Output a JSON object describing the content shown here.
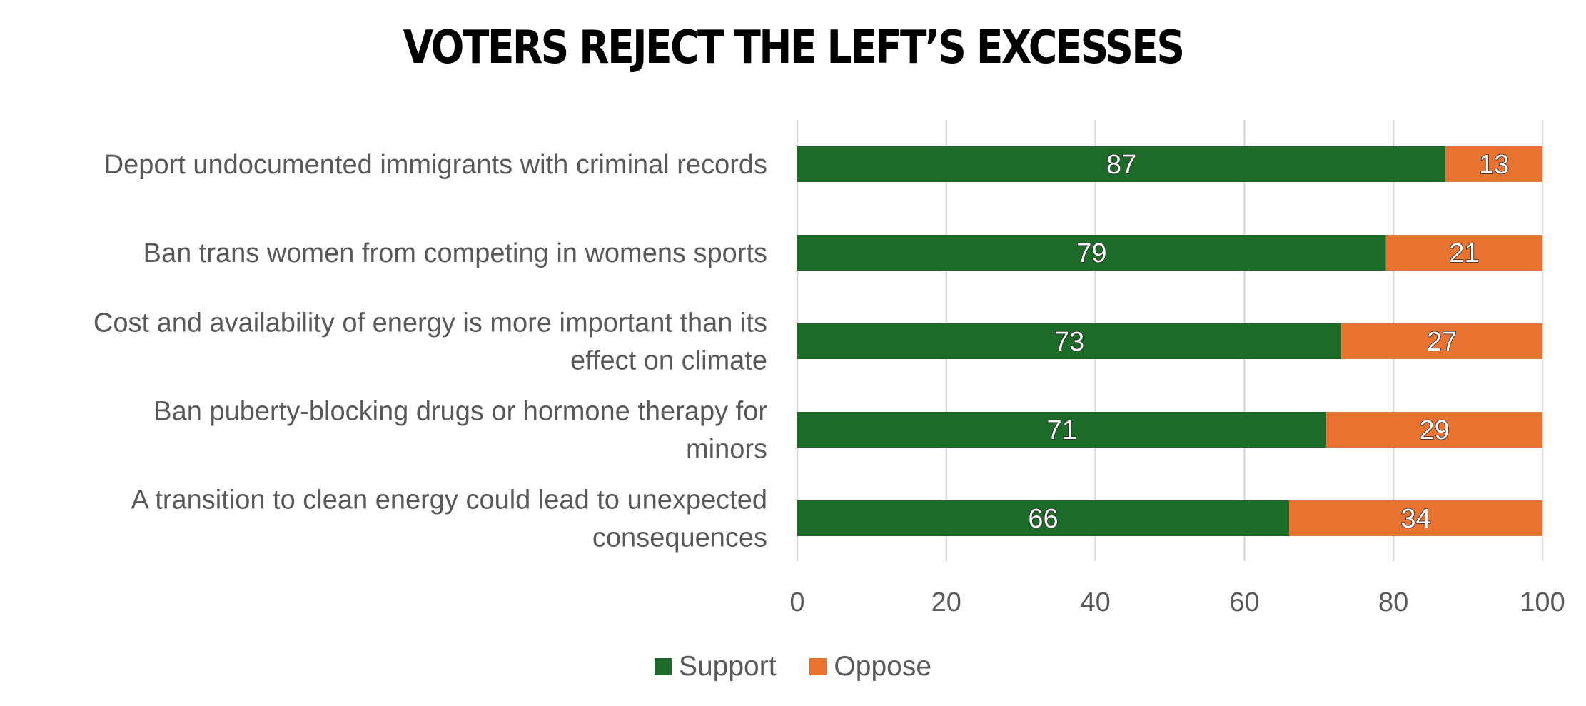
{
  "chart_data": {
    "type": "bar",
    "orientation": "horizontal",
    "stacked": true,
    "title": "VOTERS REJECT THE LEFT’S EXCESSES",
    "categories": [
      [
        "Deport undocumented immigrants with criminal records"
      ],
      [
        "Ban trans women from competing in womens sports"
      ],
      [
        "Cost and availability of energy is more important than its",
        "effect on climate"
      ],
      [
        "Ban puberty-blocking drugs or hormone therapy for",
        "minors"
      ],
      [
        "A transition to clean energy could lead to unexpected",
        "consequences"
      ]
    ],
    "series": [
      {
        "name": "Support",
        "color": "#1d6b28",
        "values": [
          87,
          79,
          73,
          71,
          66
        ]
      },
      {
        "name": "Oppose",
        "color": "#e87331",
        "values": [
          13,
          21,
          27,
          29,
          34
        ]
      }
    ],
    "xlim": [
      0,
      100
    ],
    "xticks": [
      "0",
      "20",
      "40",
      "60",
      "80",
      "100"
    ],
    "grid": true,
    "legend_position": "bottom"
  }
}
